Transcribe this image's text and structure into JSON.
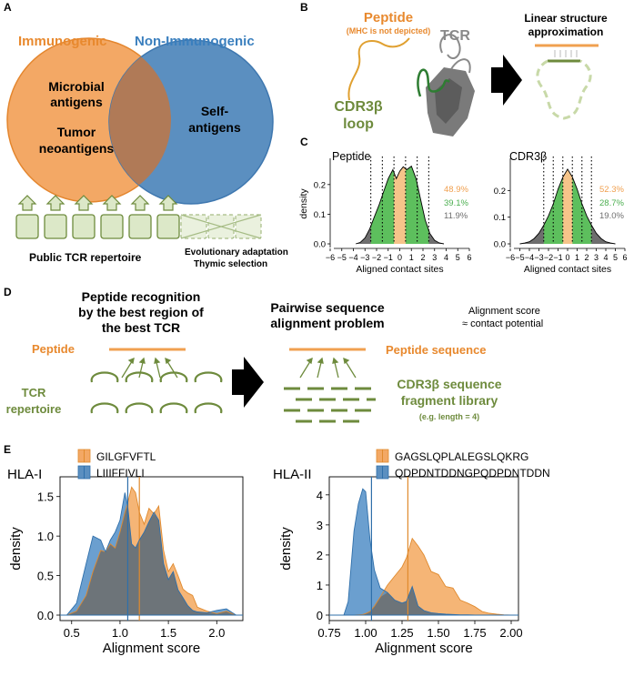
{
  "colors": {
    "orange": "#F0A050",
    "orange_text": "#E8892E",
    "blue": "#4A8AC4",
    "blue_text": "#3A7FBE",
    "green": "#6E8B3D",
    "green_fill": "#DCE8C8",
    "gray": "#6E6E6E",
    "density_green": "#5DBF5D",
    "density_orange": "#F6C48A"
  },
  "panel_a": {
    "label": "A",
    "immunogenic": "Immunogenic",
    "non_immunogenic": "Non-Immunogenic",
    "microbial_line1": "Microbial",
    "microbial_line2": "antigens",
    "tumor_line1": "Tumor",
    "tumor_line2": "neoantigens",
    "self_line1": "Self-",
    "self_line2": "antigens",
    "public_repertoire": "Public TCR repertoire",
    "evolutionary": "Evolutionary adaptation",
    "thymic": "Thymic selection"
  },
  "panel_b": {
    "label": "B",
    "peptide": "Peptide",
    "mhc_note": "(MHC is not depicted)",
    "tcr": "TCR",
    "cdr3_line1": "CDR3β",
    "cdr3_line2": "loop",
    "linear_line1": "Linear structure",
    "linear_line2": "approximation"
  },
  "panel_c": {
    "label": "C",
    "xlabel": "Aligned contact sites",
    "ylabel": "density",
    "plots": [
      {
        "title": "Peptide",
        "pct_orange": "48.9%",
        "pct_green": "39.1%",
        "pct_gray": "11.9%",
        "yticks": [
          "0.0",
          "0.1",
          "0.2"
        ],
        "xticks": [
          "−6",
          "−5",
          "−4",
          "−3",
          "−2",
          "−1",
          "0",
          "1",
          "2",
          "3",
          "4",
          "5",
          "6"
        ]
      },
      {
        "title": "CDR3β",
        "pct_orange": "52.3%",
        "pct_green": "28.7%",
        "pct_gray": "19.0%",
        "yticks": [
          "0.0",
          "0.1",
          "0.2"
        ],
        "xticks": [
          "−6",
          "−5",
          "−4",
          "−3",
          "−2",
          "−1",
          "0",
          "1",
          "2",
          "3",
          "4",
          "5",
          "6"
        ]
      }
    ]
  },
  "panel_d": {
    "label": "D",
    "recognition_line1": "Peptide recognition",
    "recognition_line2": "by the best region of",
    "recognition_line3": "the best TCR",
    "peptide": "Peptide",
    "tcr_line1": "TCR",
    "tcr_line2": "repertoire",
    "pairwise_line1": "Pairwise sequence",
    "pairwise_line2": "alignment problem",
    "score_line1": "Alignment score",
    "score_line2": "≈ contact potential",
    "peptide_sequence": "Peptide sequence",
    "cdr3_line1": "CDR3β sequence",
    "cdr3_line2": "fragment library",
    "cdr3_line3": "(e.g. length = 4)"
  },
  "panel_e": {
    "label": "E",
    "xlabel": "Alignment score",
    "ylabel": "density",
    "plots": [
      {
        "title": "HLA-I",
        "legend": [
          "GILGFVFTL",
          "LIIIFFIVLI"
        ],
        "xticks": [
          "0.5",
          "1.0",
          "1.5",
          "2.0"
        ],
        "yticks": [
          "0.0",
          "0.5",
          "1.0",
          "1.5"
        ]
      },
      {
        "title": "HLA-II",
        "legend": [
          "GAGSLQPLALEGSLQKRG",
          "QDPDNTDDNGPQDPDNTDDN"
        ],
        "xticks": [
          "0.75",
          "1.00",
          "1.25",
          "1.50",
          "1.75",
          "2.00"
        ],
        "yticks": [
          "0",
          "1",
          "2",
          "3",
          "4"
        ]
      }
    ]
  },
  "chart_data": [
    {
      "type": "area",
      "title": "Peptide",
      "xlabel": "Aligned contact sites",
      "ylabel": "density",
      "xlim": [
        -6,
        6
      ],
      "ylim": [
        0,
        0.27
      ],
      "x": [
        -3.8,
        -3.4,
        -3.0,
        -2.6,
        -2.2,
        -1.8,
        -1.4,
        -1.0,
        -0.6,
        -0.3,
        0.0,
        0.3,
        0.6,
        1.0,
        1.4,
        1.8,
        2.2,
        2.6,
        3.0,
        3.4,
        3.8
      ],
      "y": [
        0.0,
        0.005,
        0.02,
        0.05,
        0.09,
        0.13,
        0.175,
        0.22,
        0.25,
        0.22,
        0.245,
        0.26,
        0.25,
        0.262,
        0.22,
        0.15,
        0.08,
        0.035,
        0.012,
        0.003,
        0.0
      ],
      "regions": [
        {
          "name": "center",
          "range": [
            -0.5,
            0.5
          ],
          "percent": 48.9
        },
        {
          "name": "adjacent",
          "range": [
            -2.5,
            2.5
          ],
          "percent": 39.1
        },
        {
          "name": "outer",
          "percent": 11.9
        }
      ]
    },
    {
      "type": "area",
      "title": "CDR3β",
      "xlabel": "Aligned contact sites",
      "ylabel": "density",
      "xlim": [
        -6,
        6
      ],
      "ylim": [
        0,
        0.3
      ],
      "x": [
        -5.0,
        -4.5,
        -4.0,
        -3.5,
        -3.0,
        -2.5,
        -2.0,
        -1.5,
        -1.0,
        -0.5,
        0.0,
        0.5,
        1.0,
        1.5,
        2.0,
        2.5,
        3.0,
        3.5,
        4.0,
        4.5,
        5.0
      ],
      "y": [
        0.0,
        0.003,
        0.008,
        0.02,
        0.04,
        0.07,
        0.105,
        0.15,
        0.205,
        0.25,
        0.28,
        0.25,
        0.205,
        0.15,
        0.105,
        0.07,
        0.04,
        0.02,
        0.008,
        0.003,
        0.0
      ],
      "regions": [
        {
          "name": "center",
          "range": [
            -0.5,
            0.5
          ],
          "percent": 52.3
        },
        {
          "name": "adjacent",
          "range": [
            -2.5,
            2.5
          ],
          "percent": 28.7
        },
        {
          "name": "outer",
          "percent": 19.0
        }
      ]
    },
    {
      "type": "area",
      "title": "HLA-I",
      "xlabel": "Alignment score",
      "ylabel": "density",
      "xlim": [
        0.38,
        2.27
      ],
      "ylim": [
        0,
        1.75
      ],
      "x": [
        0.45,
        0.55,
        0.65,
        0.72,
        0.8,
        0.85,
        0.9,
        0.95,
        1.0,
        1.05,
        1.08,
        1.12,
        1.16,
        1.2,
        1.25,
        1.3,
        1.35,
        1.4,
        1.45,
        1.5,
        1.55,
        1.6,
        1.65,
        1.7,
        1.75,
        1.8,
        1.9,
        2.0,
        2.1,
        2.2
      ],
      "series": [
        {
          "name": "GILGFVFTL",
          "values": [
            0.0,
            0.05,
            0.25,
            0.55,
            0.82,
            0.8,
            0.9,
            0.85,
            1.05,
            1.3,
            1.42,
            1.62,
            1.55,
            1.3,
            1.15,
            1.35,
            1.28,
            1.38,
            0.82,
            0.55,
            0.65,
            0.5,
            0.33,
            0.28,
            0.25,
            0.1,
            0.05,
            0.02,
            0.05,
            0.0
          ]
        },
        {
          "name": "LIIIFFIVLI",
          "values": [
            0.0,
            0.15,
            0.65,
            1.0,
            0.95,
            0.8,
            0.95,
            1.05,
            1.2,
            1.55,
            1.38,
            0.9,
            0.85,
            0.95,
            1.05,
            1.18,
            1.3,
            1.2,
            0.65,
            0.45,
            0.55,
            0.32,
            0.22,
            0.12,
            0.06,
            0.04,
            0.03,
            0.06,
            0.08,
            0.0
          ]
        }
      ],
      "means": {
        "GILGFVFTL": 1.2,
        "LIIIFFIVLI": 1.08
      }
    },
    {
      "type": "area",
      "title": "HLA-II",
      "xlabel": "Alignment score",
      "ylabel": "density",
      "xlim": [
        0.75,
        2.05
      ],
      "ylim": [
        0,
        4.6
      ],
      "x": [
        0.85,
        0.88,
        0.92,
        0.95,
        0.98,
        1.0,
        1.03,
        1.06,
        1.1,
        1.15,
        1.2,
        1.25,
        1.28,
        1.32,
        1.36,
        1.4,
        1.45,
        1.5,
        1.55,
        1.6,
        1.65,
        1.7,
        1.75,
        1.8,
        1.85,
        1.9,
        1.95,
        2.0
      ],
      "series": [
        {
          "name": "GAGSLQPLALEGSLQKRG",
          "values": [
            0.0,
            0.0,
            0.0,
            0.01,
            0.02,
            0.05,
            0.12,
            0.3,
            0.6,
            1.0,
            1.3,
            1.6,
            1.9,
            2.55,
            2.3,
            2.0,
            1.45,
            1.35,
            0.95,
            0.9,
            0.5,
            0.4,
            0.28,
            0.12,
            0.06,
            0.03,
            0.01,
            0.0
          ]
        },
        {
          "name": "QDPDNTDDNGPQDPDNTDDN",
          "values": [
            0.0,
            0.45,
            2.8,
            3.7,
            4.2,
            4.1,
            2.5,
            1.5,
            0.9,
            0.75,
            0.5,
            0.4,
            0.45,
            0.95,
            0.3,
            0.15,
            0.08,
            0.05,
            0.03,
            0.02,
            0.01,
            0.01,
            0.0,
            0.0,
            0.0,
            0.0,
            0.0,
            0.0
          ]
        }
      ],
      "means": {
        "GAGSLQPLALEGSLQKRG": 1.29,
        "QDPDNTDDNGPQDPDNTDDN": 1.04
      }
    }
  ]
}
